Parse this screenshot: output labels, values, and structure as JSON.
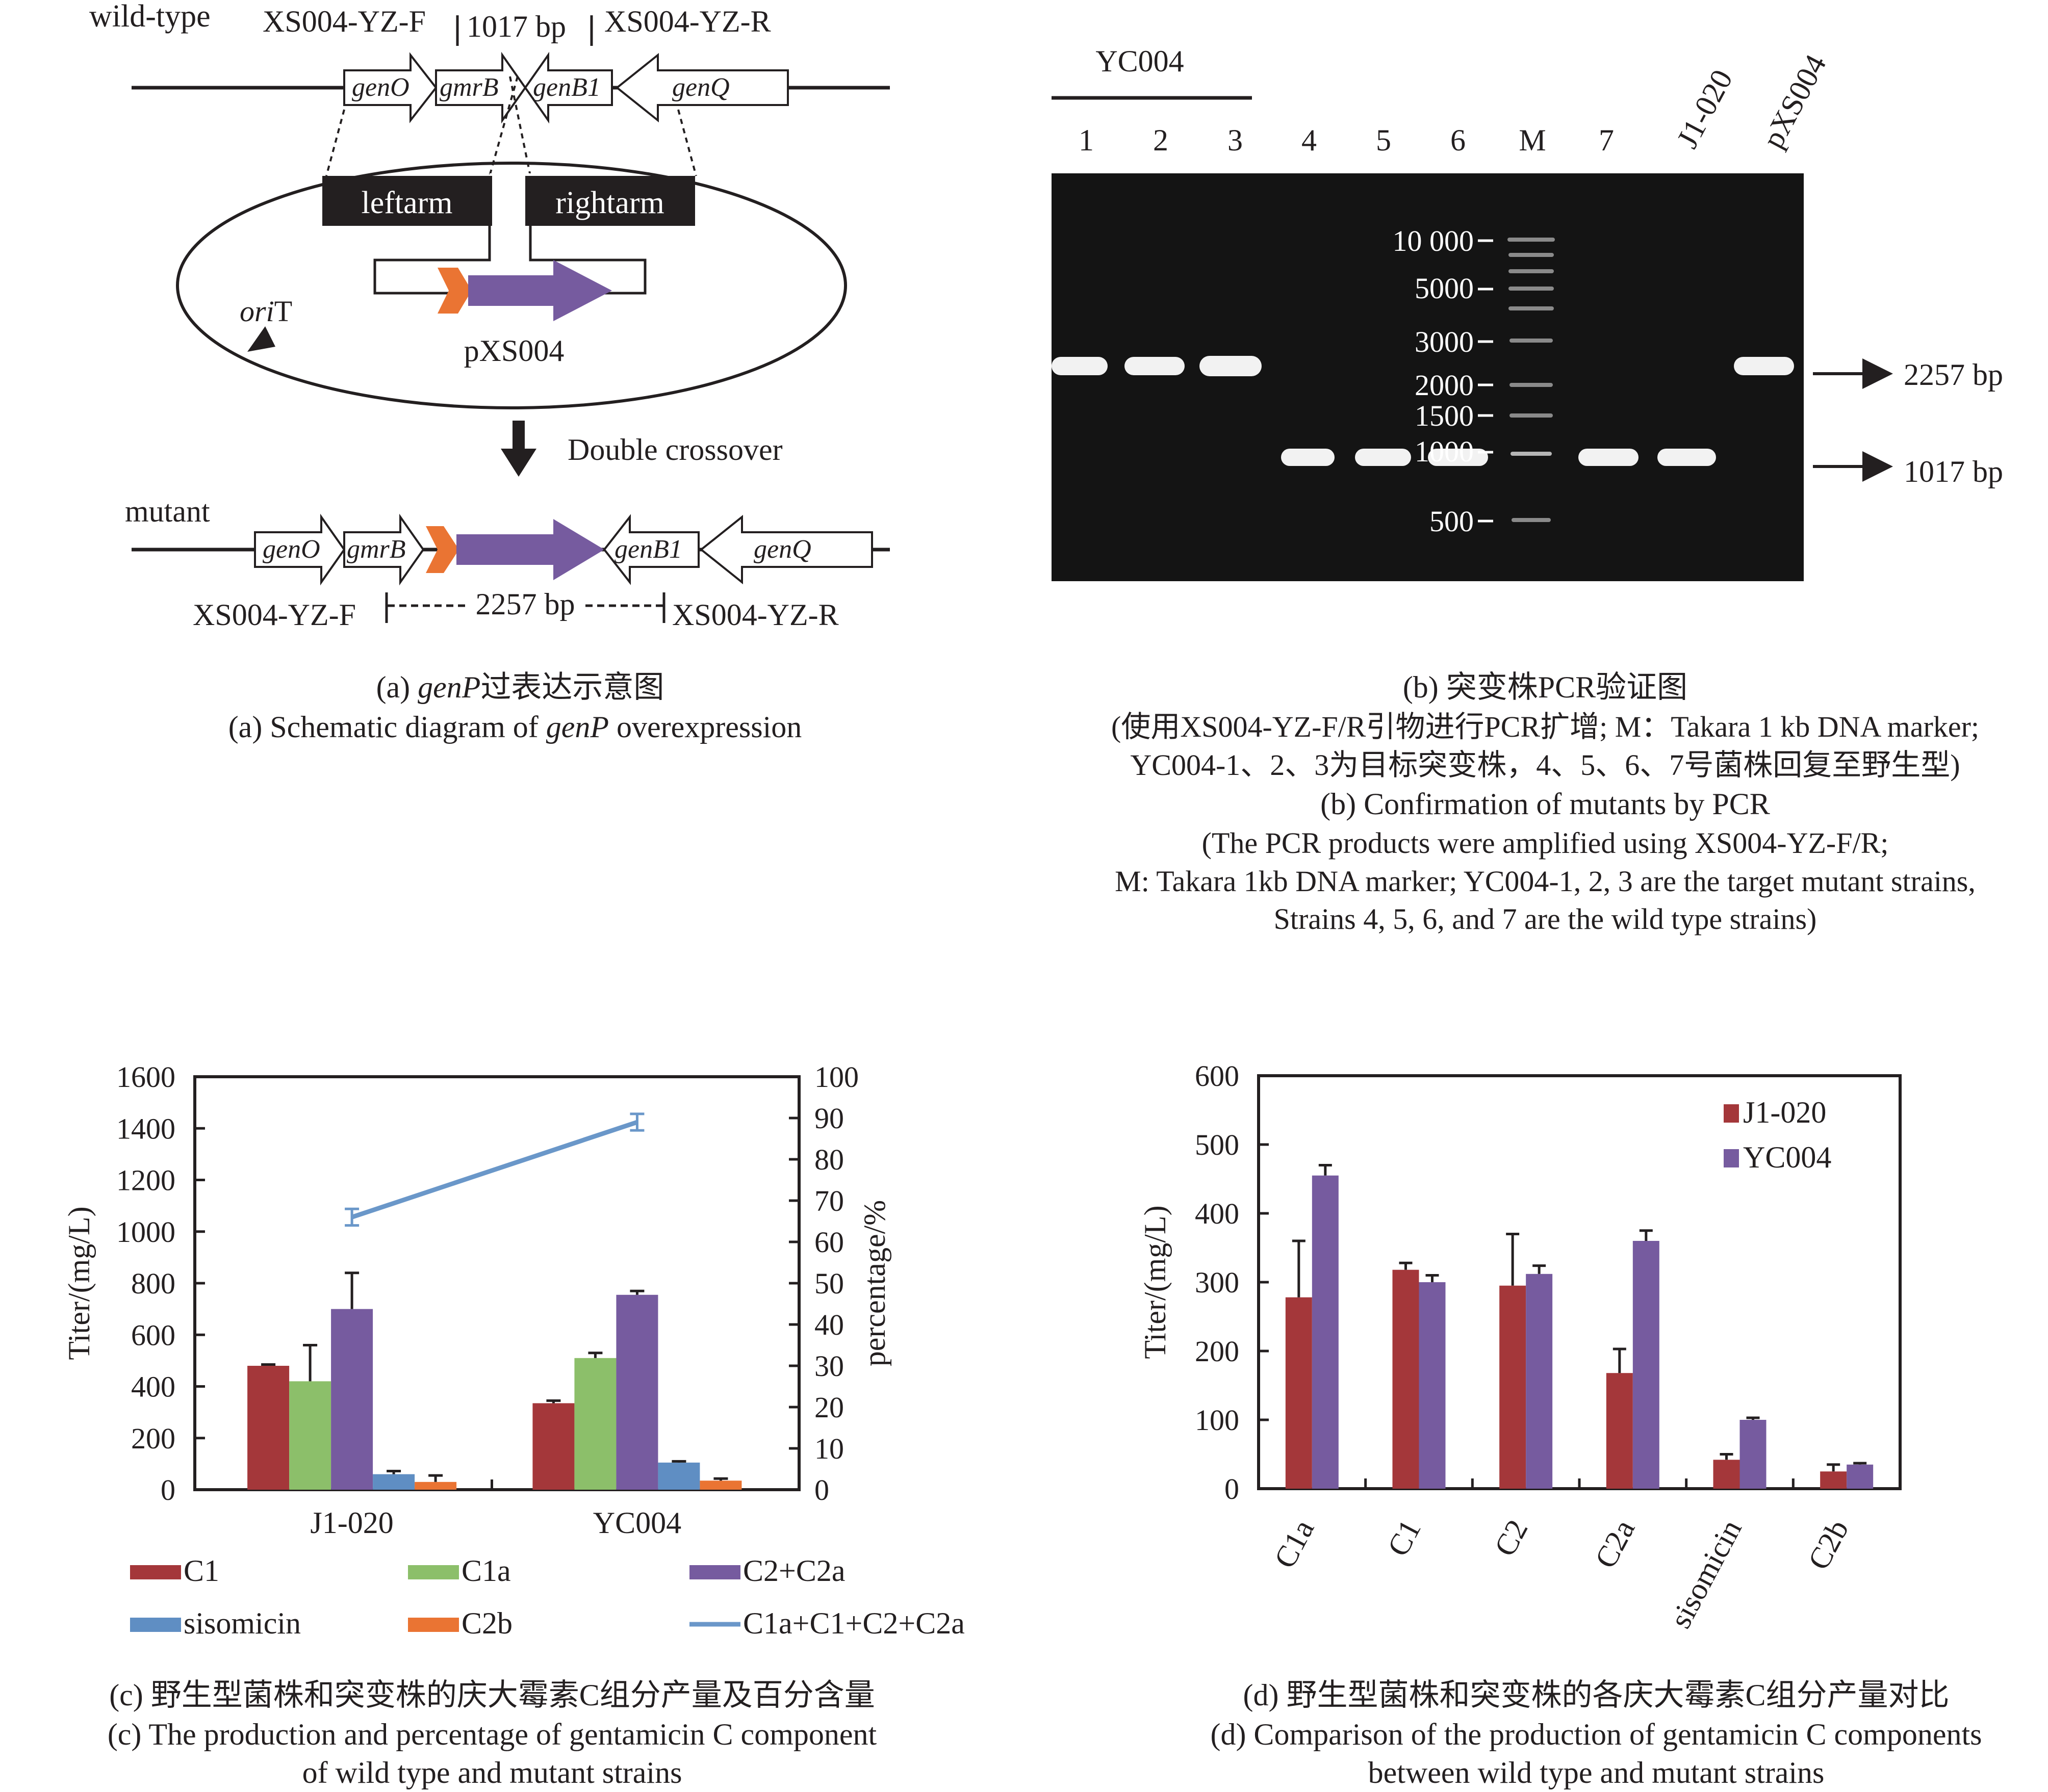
{
  "panel_a": {
    "wildtype_label": "wild-type",
    "mutant_label": "mutant",
    "primer_f": "XS004-YZ-F",
    "primer_r": "XS004-YZ-R",
    "wt_product": "1017 bp",
    "mut_product": "2257 bp",
    "genes": [
      "genO",
      "gmrB",
      "genB1",
      "genQ"
    ],
    "leftarm": "leftarm",
    "rightarm": "rightarm",
    "oriT_italic": "ori",
    "oriT_rest": "T",
    "plasmid": "pXS004",
    "step": "Double crossover",
    "caption_cn_italic": "genP",
    "caption_cn_rest": "过表达示意图",
    "caption_en_1": "(a) Schematic diagram of ",
    "caption_en_italic": "genP",
    "caption_en_2": " overexpression",
    "caption_cn_prefix": "(a) "
  },
  "panel_b": {
    "group_label": "YC004",
    "lanes": [
      "1",
      "2",
      "3",
      "4",
      "5",
      "6",
      "M",
      "7",
      "J1-020",
      "pXS004"
    ],
    "markers": [
      "10 000",
      "5000",
      "3000",
      "2000",
      "1500",
      "1000",
      "500"
    ],
    "band_labels": [
      "2257 bp",
      "1017 bp"
    ],
    "caption_lines": [
      "(b) 突变株PCR验证图",
      "(使用XS004-YZ-F/R引物进行PCR扩增; M：Takara 1 kb DNA marker;",
      "YC004-1、2、3为目标突变株，4、5、6、7号菌株回复至野生型)",
      "(b) Confirmation of mutants by PCR",
      "(The PCR products were amplified using XS004-YZ-F/R;",
      "M: Takara 1kb DNA marker; YC004-1, 2, 3 are the target mutant strains,",
      "Strains 4, 5, 6, and 7 are the wild type strains)"
    ]
  },
  "chart_data": [
    {
      "type": "bar",
      "panel": "c",
      "categories": [
        "J1-020",
        "YC004"
      ],
      "series": [
        {
          "name": "C1",
          "values": [
            480,
            335
          ],
          "errors": [
            5,
            10
          ],
          "color": "#a4373a"
        },
        {
          "name": "C1a",
          "values": [
            420,
            510
          ],
          "errors": [
            140,
            20
          ],
          "color": "#8cbf6a"
        },
        {
          "name": "C2+C2a",
          "values": [
            700,
            755
          ],
          "errors": [
            140,
            15
          ],
          "color": "#765b9f"
        },
        {
          "name": "sisomicin",
          "values": [
            60,
            105
          ],
          "errors": [
            12,
            5
          ],
          "color": "#5f8ec3"
        },
        {
          "name": "C2b",
          "values": [
            30,
            35
          ],
          "errors": [
            25,
            8
          ],
          "color": "#ea7433"
        }
      ],
      "line_series": {
        "name": "C1a+C1+C2+C2a",
        "values": [
          66,
          89
        ],
        "errors": [
          2,
          2
        ],
        "color": "#6a97c9"
      },
      "ylabel": "Titer/(mg/L)",
      "y2label": "percentage/%",
      "ylim": [
        0,
        1600
      ],
      "y2lim": [
        0,
        100
      ],
      "yticks": [
        0,
        200,
        400,
        600,
        800,
        1000,
        1200,
        1400,
        1600
      ],
      "y2ticks": [
        0,
        10,
        20,
        30,
        40,
        50,
        60,
        70,
        80,
        90,
        100
      ],
      "legend": [
        "C1",
        "C1a",
        "C2+C2a",
        "sisomicin",
        "C2b",
        "C1a+C1+C2+C2a"
      ],
      "legend_position": "bottom",
      "caption_lines": [
        "(c) 野生型菌株和突变株的庆大霉素C组分产量及百分含量",
        "(c) The production and percentage of gentamicin C component",
        "of wild type and mutant strains"
      ]
    },
    {
      "type": "bar",
      "panel": "d",
      "categories": [
        "C1a",
        "C1",
        "C2",
        "C2a",
        "sisomicin",
        "C2b"
      ],
      "series": [
        {
          "name": "J1-020",
          "values": [
            278,
            318,
            295,
            168,
            42,
            25
          ],
          "errors": [
            82,
            10,
            75,
            35,
            8,
            10
          ],
          "color": "#a4373a"
        },
        {
          "name": "YC004",
          "values": [
            455,
            300,
            312,
            360,
            100,
            35
          ],
          "errors": [
            15,
            10,
            12,
            15,
            3,
            2
          ],
          "color": "#765b9f"
        }
      ],
      "ylabel": "Titer/(mg/L)",
      "ylim": [
        0,
        600
      ],
      "yticks": [
        0,
        100,
        200,
        300,
        400,
        500,
        600
      ],
      "legend_position": "top-right",
      "caption_lines": [
        "(d) 野生型菌株和突变株的各庆大霉素C组分产量对比",
        "(d) Comparison of the production of gentamicin C components",
        "between wild type and mutant strains"
      ]
    }
  ]
}
